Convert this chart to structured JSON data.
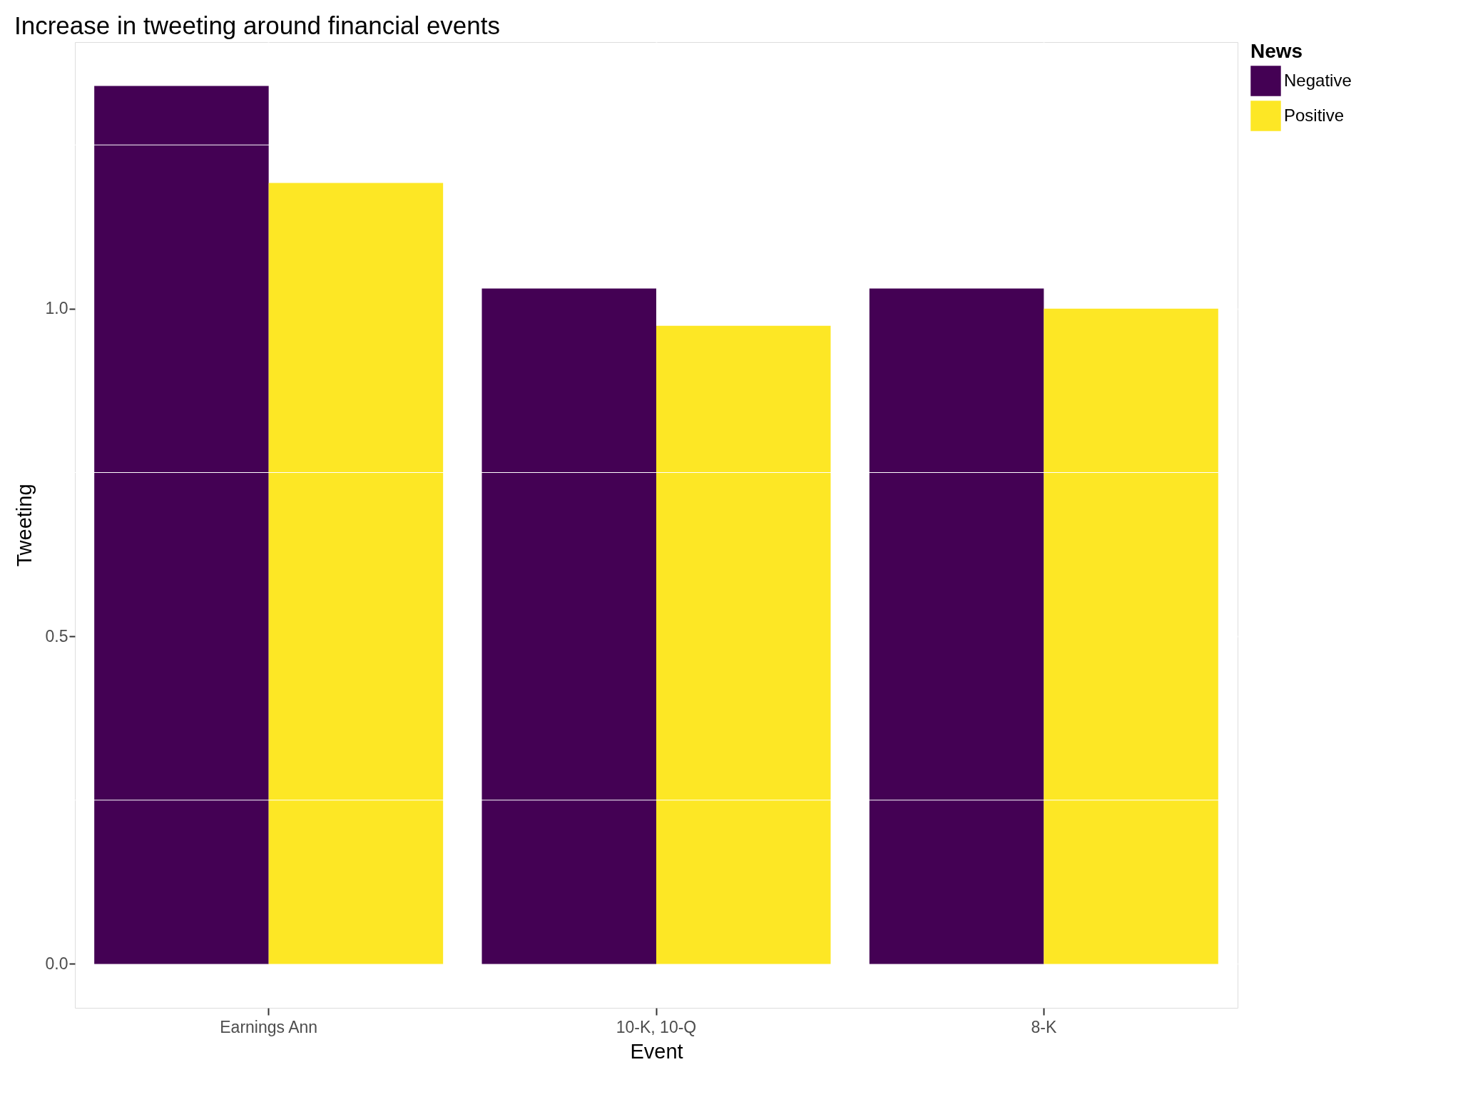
{
  "chart_data": {
    "type": "bar",
    "title": "Increase in tweeting around financial events",
    "xlabel": "Event",
    "ylabel": "Tweeting",
    "legend_title": "News",
    "categories": [
      "Earnings Ann",
      "10-K, 10-Q",
      "8-K"
    ],
    "series": [
      {
        "name": "Negative",
        "color": "#440154",
        "values": [
          1.34,
          1.031,
          1.031
        ]
      },
      {
        "name": "Positive",
        "color": "#fde725",
        "values": [
          1.192,
          0.974,
          1.0
        ]
      }
    ],
    "ylim": [
      -0.067,
      1.407
    ],
    "yticks": [
      {
        "value": 0,
        "label": "0.0"
      },
      {
        "value": 0.25,
        "label": null
      },
      {
        "value": 0.5,
        "label": "0.5"
      },
      {
        "value": 0.75,
        "label": null
      },
      {
        "value": 1.0,
        "label": "1.0"
      },
      {
        "value": 1.25,
        "label": null
      }
    ],
    "grid": true,
    "legend": "right"
  }
}
